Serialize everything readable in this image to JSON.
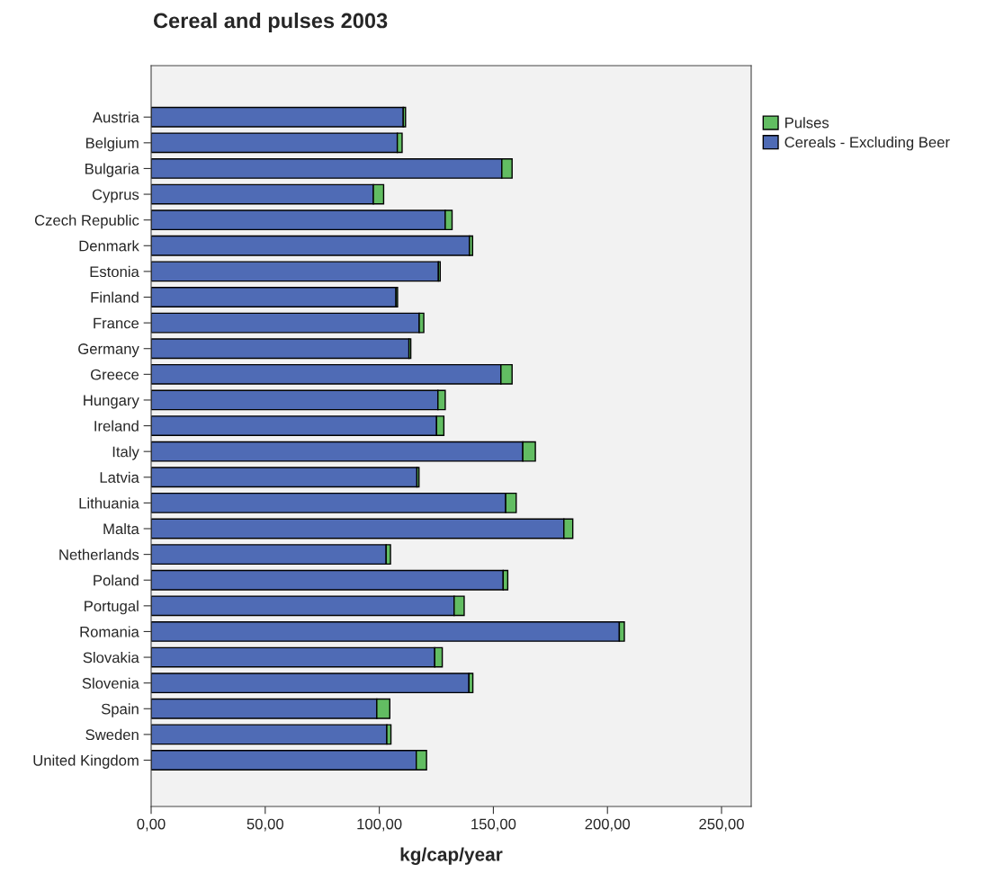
{
  "chart_data": {
    "type": "bar",
    "orientation": "horizontal",
    "stacked": true,
    "title": "Cereal and pulses 2003",
    "xlabel": "kg/cap/year",
    "categories": [
      "Austria",
      "Belgium",
      "Bulgaria",
      "Cyprus",
      "Czech Republic",
      "Denmark",
      "Estonia",
      "Finland",
      "France",
      "Germany",
      "Greece",
      "Hungary",
      "Ireland",
      "Italy",
      "Latvia",
      "Lithuania",
      "Malta",
      "Netherlands",
      "Poland",
      "Portugal",
      "Romania",
      "Slovakia",
      "Slovenia",
      "Spain",
      "Sweden",
      "United Kingdom"
    ],
    "series": [
      {
        "name": "Cereals - Excluding Beer",
        "color": "#4f6bb5",
        "values": [
          110.5,
          107.9,
          153.7,
          97.4,
          128.9,
          139.5,
          125.9,
          107.3,
          117.5,
          113.0,
          153.3,
          125.7,
          125.1,
          162.9,
          116.5,
          155.4,
          180.9,
          103.0,
          154.3,
          132.8,
          205.2,
          124.3,
          139.3,
          98.9,
          103.3,
          116.2
        ]
      },
      {
        "name": "Pulses",
        "color": "#62bd62",
        "values": [
          1.0,
          2.1,
          4.5,
          4.5,
          3.0,
          1.4,
          0.8,
          0.7,
          2.0,
          0.8,
          4.9,
          3.2,
          3.2,
          5.5,
          0.9,
          4.6,
          3.9,
          1.9,
          2.0,
          4.4,
          2.2,
          3.3,
          1.7,
          5.7,
          1.8,
          4.5
        ]
      }
    ],
    "xlim": [
      0,
      263
    ],
    "xticks": [
      {
        "value": 0,
        "label": "0,00"
      },
      {
        "value": 50,
        "label": "50,00"
      },
      {
        "value": 100,
        "label": "100,00"
      },
      {
        "value": 150,
        "label": "150,00"
      },
      {
        "value": 200,
        "label": "200,00"
      },
      {
        "value": 250,
        "label": "250,00"
      }
    ],
    "grid": false,
    "legend": "top right"
  }
}
